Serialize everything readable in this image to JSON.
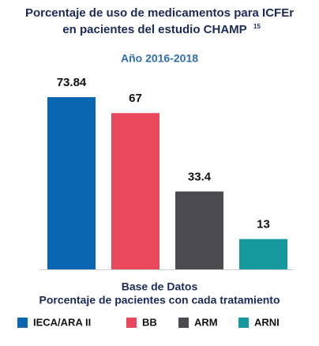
{
  "chart_data": {
    "type": "bar",
    "title": [
      "Porcentaje de uso de medicamentos para ICFEr",
      "en pacientes del estudio CHAMP"
    ],
    "title_superscript": "15",
    "subtitle": "Año 2016-2018",
    "x_label": [
      "Base de Datos",
      "Porcentaje de pacientes con cada tratamiento"
    ],
    "categories": [
      "IECA/ARA II",
      "BB",
      "ARM",
      "ARNI"
    ],
    "values": [
      73.84,
      67,
      33.4,
      13
    ],
    "colors": [
      "#0b66b1",
      "#e9475b",
      "#4a4a4f",
      "#15999f"
    ],
    "legend": "bottom"
  }
}
